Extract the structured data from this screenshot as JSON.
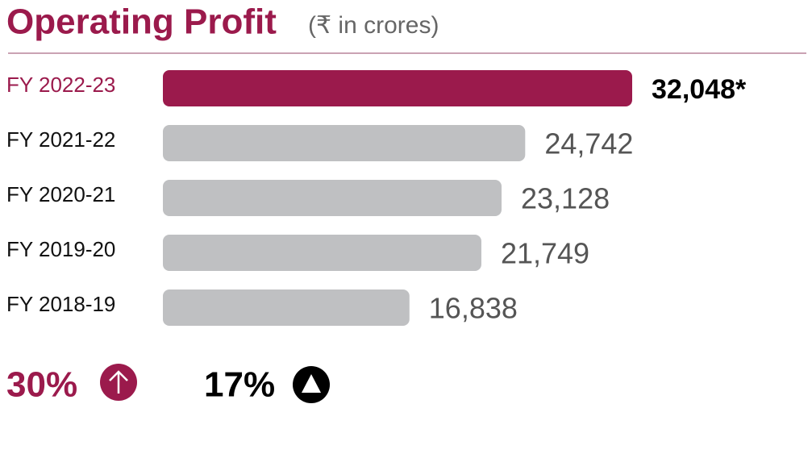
{
  "chart_data": {
    "type": "hbar",
    "title": "Operating Profit",
    "subtitle": "(₹ in crores)",
    "categories": [
      "FY 2022-23",
      "FY 2021-22",
      "FY 2020-21",
      "FY 2019-20",
      "FY 2018-19"
    ],
    "values": [
      32048,
      24742,
      23128,
      21749,
      16838
    ],
    "value_labels": [
      "32,048*",
      "24,742",
      "23,128",
      "21,749",
      "16,838"
    ],
    "colors": [
      "#9b1a4c",
      "#bfc0c2",
      "#bfc0c2",
      "#bfc0c2",
      "#bfc0c2"
    ],
    "annotations": [
      "30%",
      "17%"
    ]
  }
}
